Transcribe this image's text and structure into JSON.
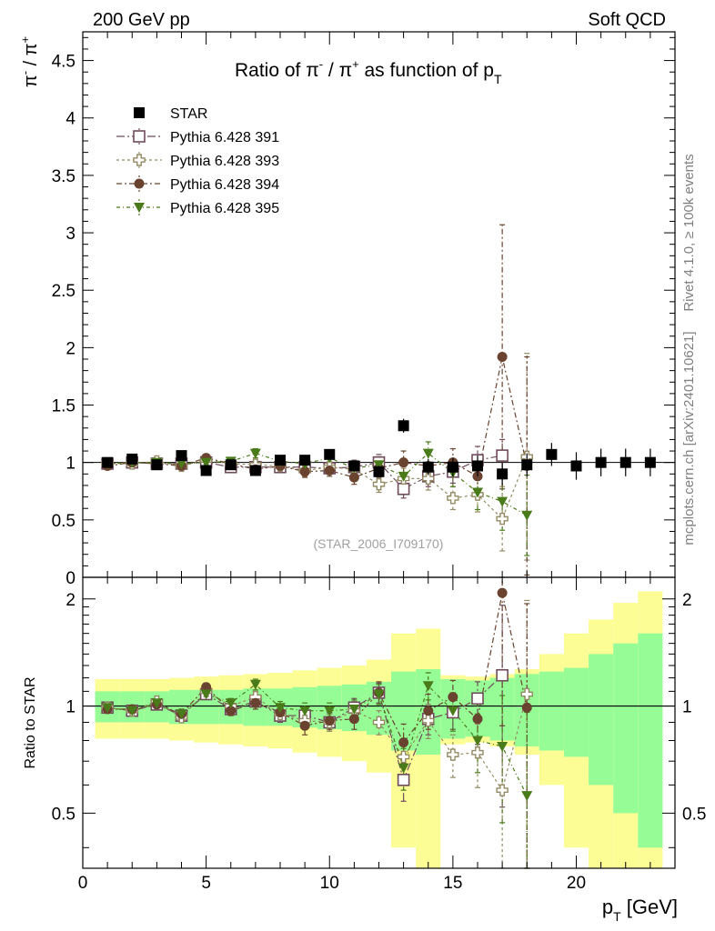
{
  "header": {
    "left_label": "200 GeV pp",
    "right_label": "Soft QCD"
  },
  "side_labels": {
    "rivet": "Rivet 4.1.0, ≥ 100k events",
    "mcplots": "mcplots.cern.ch [arXiv:2401.10621]"
  },
  "analysis_id": "(STAR_2006_I709170)",
  "colors": {
    "star": "#000000",
    "p391": "#6f4a5b",
    "p393": "#948a63",
    "p394": "#6a4330",
    "p395": "#4a7b1a",
    "band_green": "#96fc96",
    "band_yellow": "#fdfd96"
  },
  "chart_data": {
    "type": "scatter",
    "title_parts": {
      "prefix": "Ratio of ",
      "pi": "π",
      "sup_minus": "-",
      "slash": " / ",
      "sup_plus": "+",
      "middle": " as function of ",
      "p": "p",
      "sub": "T"
    },
    "ylabel_parts": {
      "pi": "π",
      "minus": "-",
      "slash": " / ",
      "plus": "+"
    },
    "xlabel_parts": {
      "p": "p",
      "sub": "T",
      "unit": " [GeV]"
    },
    "ratio_ylabel": "Ratio to STAR",
    "xlim": [
      0,
      24
    ],
    "ylim": [
      0,
      4.75
    ],
    "ratio_ylim": [
      0.35,
      2.3
    ],
    "x_ticks": [
      "0",
      "5",
      "10",
      "15",
      "20"
    ],
    "y_ticks": [
      "0",
      "0.5",
      "1",
      "1.5",
      "2",
      "2.5",
      "3",
      "3.5",
      "4",
      "4.5"
    ],
    "ratio_ticks": [
      "0.5",
      "1",
      "2"
    ],
    "legend": [
      "STAR",
      "Pythia 6.428 391",
      "Pythia 6.428 393",
      "Pythia 6.428 394",
      "Pythia 6.428 395"
    ],
    "star": {
      "x": [
        1,
        2,
        3,
        4,
        5,
        6,
        7,
        8,
        9,
        10,
        11,
        12,
        13,
        14,
        15,
        16,
        17,
        18,
        19,
        20,
        21,
        22,
        23
      ],
      "y": [
        1.0,
        1.03,
        0.98,
        1.06,
        0.93,
        0.98,
        0.93,
        1.02,
        1.02,
        1.07,
        0.97,
        0.92,
        1.32,
        0.96,
        0.96,
        0.97,
        0.9,
        0.98,
        1.07,
        0.97,
        1.0,
        1.0,
        1.0
      ],
      "err": [
        0.02,
        0.02,
        0.02,
        0.03,
        0.03,
        0.03,
        0.03,
        0.03,
        0.04,
        0.04,
        0.04,
        0.05,
        0.06,
        0.07,
        0.08,
        0.09,
        0.1,
        0.1,
        0.1,
        0.12,
        0.12,
        0.12,
        0.12
      ],
      "ratio_green": [
        0.1,
        0.1,
        0.1,
        0.11,
        0.11,
        0.11,
        0.12,
        0.12,
        0.13,
        0.14,
        0.15,
        0.17,
        0.25,
        0.27,
        0.19,
        0.18,
        0.2,
        0.23,
        0.25,
        0.28,
        0.4,
        0.5,
        0.6
      ],
      "ratio_yellow": [
        0.19,
        0.19,
        0.19,
        0.2,
        0.21,
        0.22,
        0.23,
        0.24,
        0.26,
        0.28,
        0.3,
        0.35,
        0.6,
        0.65,
        0.22,
        0.21,
        0.23,
        0.27,
        0.4,
        0.6,
        0.75,
        0.95,
        1.1
      ]
    },
    "series": [
      {
        "name": "Pythia 6.428 391",
        "marker": "open-square",
        "x": [
          1,
          2,
          3,
          4,
          5,
          6,
          7,
          8,
          9,
          10,
          11,
          12,
          13,
          14,
          15,
          16,
          17
        ],
        "y": [
          0.99,
          1.0,
          0.99,
          0.99,
          1.0,
          0.96,
          0.96,
          0.96,
          0.96,
          0.95,
          0.96,
          1.0,
          0.77,
          0.88,
          0.92,
          1.02,
          1.06
        ],
        "err": [
          0.02,
          0.02,
          0.02,
          0.03,
          0.03,
          0.03,
          0.03,
          0.04,
          0.04,
          0.05,
          0.06,
          0.07,
          0.08,
          0.09,
          0.1,
          0.12,
          0.14
        ],
        "ratio": [
          0.99,
          0.97,
          1.01,
          0.94,
          1.08,
          0.98,
          1.03,
          0.94,
          0.94,
          0.9,
          0.99,
          1.09,
          0.62,
          0.92,
          0.96,
          1.05,
          1.22
        ],
        "ratio_err": [
          0.02,
          0.02,
          0.02,
          0.03,
          0.03,
          0.03,
          0.03,
          0.04,
          0.04,
          0.05,
          0.06,
          0.07,
          0.08,
          0.09,
          0.1,
          0.12,
          0.7
        ]
      },
      {
        "name": "Pythia 6.428 393",
        "marker": "open-cross",
        "x": [
          1,
          2,
          3,
          4,
          5,
          6,
          7,
          8,
          9,
          10,
          11,
          12,
          13,
          14,
          15,
          16,
          17,
          18
        ],
        "y": [
          0.99,
          0.99,
          1.01,
          0.97,
          1.02,
          0.99,
          0.98,
          0.97,
          0.93,
          0.96,
          0.94,
          0.81,
          0.86,
          0.86,
          0.69,
          0.72,
          0.51,
          1.05
        ],
        "err": [
          0.02,
          0.02,
          0.02,
          0.03,
          0.03,
          0.03,
          0.04,
          0.04,
          0.05,
          0.05,
          0.06,
          0.07,
          0.09,
          0.1,
          0.1,
          0.15,
          0.28,
          0.9
        ],
        "ratio": [
          0.99,
          0.97,
          1.03,
          0.93,
          1.1,
          1.0,
          1.06,
          0.95,
          0.91,
          0.9,
          0.97,
          0.9,
          0.72,
          0.91,
          0.73,
          0.74,
          0.58,
          1.08
        ],
        "ratio_err": [
          0.02,
          0.02,
          0.02,
          0.03,
          0.03,
          0.03,
          0.04,
          0.04,
          0.05,
          0.05,
          0.06,
          0.07,
          0.09,
          0.1,
          0.1,
          0.15,
          0.3,
          0.9
        ]
      },
      {
        "name": "Pythia 6.428 394",
        "marker": "filled-circle",
        "x": [
          1,
          2,
          3,
          4,
          5,
          6,
          7,
          8,
          9,
          10,
          11,
          12,
          13,
          14,
          15,
          16,
          17,
          18
        ],
        "y": [
          0.97,
          1.0,
          0.99,
          0.97,
          1.04,
          0.99,
          0.94,
          0.97,
          0.92,
          0.93,
          0.87,
          0.95,
          1.0,
          0.97,
          1.0,
          0.88,
          1.92,
          0.97
        ],
        "err": [
          0.02,
          0.02,
          0.02,
          0.03,
          0.03,
          0.03,
          0.04,
          0.04,
          0.05,
          0.05,
          0.06,
          0.08,
          0.1,
          0.11,
          0.12,
          0.14,
          1.15,
          0.95
        ],
        "ratio": [
          0.98,
          0.98,
          1.01,
          0.95,
          1.13,
          0.97,
          1.02,
          0.96,
          0.88,
          0.91,
          0.92,
          1.09,
          0.79,
          0.97,
          1.06,
          0.92,
          2.08,
          0.99
        ],
        "ratio_err": [
          0.02,
          0.02,
          0.02,
          0.03,
          0.03,
          0.03,
          0.04,
          0.04,
          0.05,
          0.05,
          0.06,
          0.08,
          0.1,
          0.11,
          0.12,
          0.14,
          1.2,
          0.95
        ]
      },
      {
        "name": "Pythia 6.428 395",
        "marker": "filled-triangle-down",
        "x": [
          1,
          2,
          3,
          4,
          5,
          6,
          7,
          8,
          9,
          10,
          11,
          12,
          13,
          14,
          15,
          16,
          17,
          18
        ],
        "y": [
          0.99,
          1.0,
          1.0,
          0.99,
          1.0,
          1.01,
          1.08,
          1.01,
          0.99,
          1.04,
          0.95,
          0.98,
          0.88,
          1.08,
          0.91,
          0.74,
          0.66,
          0.54
        ],
        "err": [
          0.02,
          0.02,
          0.02,
          0.03,
          0.03,
          0.03,
          0.04,
          0.04,
          0.05,
          0.05,
          0.06,
          0.07,
          0.09,
          0.1,
          0.12,
          0.15,
          0.25,
          0.35
        ],
        "ratio": [
          0.99,
          0.97,
          1.02,
          0.95,
          1.08,
          1.02,
          1.15,
          0.99,
          0.97,
          0.97,
          0.98,
          1.08,
          0.67,
          1.14,
          0.97,
          0.8,
          0.77,
          0.56
        ],
        "ratio_err": [
          0.02,
          0.02,
          0.02,
          0.03,
          0.03,
          0.03,
          0.04,
          0.04,
          0.05,
          0.05,
          0.06,
          0.07,
          0.09,
          0.1,
          0.12,
          0.15,
          0.3,
          0.4
        ]
      }
    ]
  }
}
